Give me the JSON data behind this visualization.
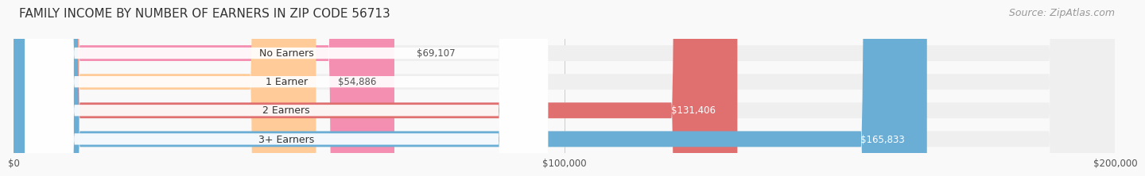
{
  "title": "FAMILY INCOME BY NUMBER OF EARNERS IN ZIP CODE 56713",
  "source": "Source: ZipAtlas.com",
  "categories": [
    "No Earners",
    "1 Earner",
    "2 Earners",
    "3+ Earners"
  ],
  "values": [
    69107,
    54886,
    131406,
    165833
  ],
  "bar_colors": [
    "#F48FB1",
    "#FFCC99",
    "#E07070",
    "#6AAED6"
  ],
  "bar_bg_color": "#EFEFEF",
  "label_colors": [
    "#555555",
    "#555555",
    "#FFFFFF",
    "#FFFFFF"
  ],
  "value_labels": [
    "$69,107",
    "$54,886",
    "$131,406",
    "$165,833"
  ],
  "xlim": [
    0,
    200000
  ],
  "xticks": [
    0,
    100000,
    200000
  ],
  "xtick_labels": [
    "$0",
    "$100,000",
    "$200,000"
  ],
  "title_fontsize": 11,
  "source_fontsize": 9,
  "bar_height": 0.55,
  "background_color": "#F9F9F9"
}
